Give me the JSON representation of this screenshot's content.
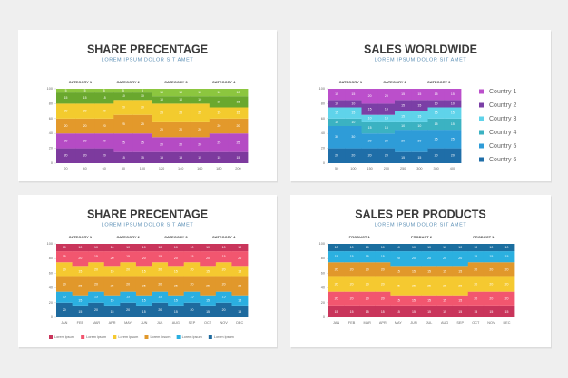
{
  "chart_data": [
    {
      "type": "area",
      "title": "SHARE PRECENTAGE",
      "subtitle": "LOREM IPSUM DOLOR SIT AMET",
      "group_labels": [
        "CATEGORY 1",
        "CATEGORY 2",
        "CATEGORY 3",
        "CATEGORY 4"
      ],
      "categories": [
        "20",
        "40",
        "60",
        "80",
        "100",
        "120",
        "140",
        "160",
        "180",
        "200"
      ],
      "ylim": [
        0,
        100
      ],
      "yticks": [
        0,
        20,
        40,
        60,
        80,
        100
      ],
      "series": [
        {
          "color": "#8cc63f",
          "values": [
            5,
            5,
            5,
            5,
            5,
            10,
            10,
            10,
            10,
            10
          ]
        },
        {
          "color": "#6aa82e",
          "values": [
            15,
            15,
            15,
            10,
            10,
            10,
            10,
            10,
            15,
            15
          ]
        },
        {
          "color": "#f3cb2e",
          "values": [
            20,
            20,
            20,
            20,
            20,
            25,
            25,
            25,
            15,
            15
          ]
        },
        {
          "color": "#e3992b",
          "values": [
            20,
            20,
            20,
            25,
            25,
            20,
            20,
            20,
            20,
            20
          ]
        },
        {
          "color": "#b54bc4",
          "values": [
            20,
            20,
            20,
            25,
            25,
            20,
            20,
            20,
            25,
            25
          ]
        },
        {
          "color": "#7d3a9e",
          "values": [
            20,
            20,
            20,
            15,
            15,
            15,
            15,
            15,
            15,
            15
          ]
        }
      ]
    },
    {
      "type": "area",
      "title": "SALES WORLDWIDE",
      "subtitle": "LOREM IPSUM DOLOR SIT AMET",
      "group_labels": [
        "CATEGORY 1",
        "CATEGORY 2",
        "CATEGORY 3"
      ],
      "categories": [
        "50",
        "100",
        "150",
        "200",
        "250",
        "300",
        "350",
        "400"
      ],
      "ylim": [
        0,
        100
      ],
      "yticks": [
        0,
        20,
        40,
        60,
        80,
        100
      ],
      "legend": "right",
      "series": [
        {
          "name": "Country 1",
          "color": "#bb4fcb",
          "values": [
            15,
            15,
            20,
            20,
            15,
            15,
            15,
            15
          ]
        },
        {
          "name": "Country 2",
          "color": "#7b3fa6",
          "values": [
            10,
            10,
            15,
            15,
            15,
            15,
            10,
            10
          ]
        },
        {
          "name": "Country 3",
          "color": "#5fd3ea",
          "values": [
            15,
            15,
            10,
            10,
            15,
            15,
            15,
            15
          ]
        },
        {
          "name": "Country 4",
          "color": "#3bb2c2",
          "values": [
            10,
            10,
            15,
            15,
            10,
            10,
            15,
            15
          ]
        },
        {
          "name": "Country 5",
          "color": "#2e9cd8",
          "values": [
            30,
            30,
            20,
            20,
            30,
            30,
            25,
            25
          ]
        },
        {
          "name": "Country 6",
          "color": "#1f6ea8",
          "values": [
            20,
            20,
            20,
            20,
            15,
            15,
            20,
            20
          ]
        }
      ]
    },
    {
      "type": "area",
      "title": "SHARE PRECENTAGE",
      "subtitle": "LOREM IPSUM DOLOR SIT AMET",
      "group_labels": [
        "CATEGORY 1",
        "CATEGORY 2",
        "CATEGORY 3",
        "CATEGORY 4"
      ],
      "categories": [
        "JAN",
        "FEB",
        "MAR",
        "APR",
        "MAY",
        "JUN",
        "JUL",
        "AUG",
        "SEP",
        "OCT",
        "NOV",
        "DEC"
      ],
      "ylim": [
        0,
        100
      ],
      "yticks": [
        0,
        20,
        40,
        60,
        80,
        100
      ],
      "legend": "bottom",
      "series": [
        {
          "name": "Lorem ipsum",
          "color": "#c9355b",
          "values": [
            10,
            10,
            10,
            10,
            10,
            10,
            10,
            10,
            10,
            10,
            10,
            10
          ]
        },
        {
          "name": "Lorem ipsum",
          "color": "#f2566f",
          "values": [
            15,
            20,
            15,
            20,
            15,
            20,
            15,
            20,
            15,
            20,
            15,
            20
          ]
        },
        {
          "name": "Lorem ipsum",
          "color": "#f5c930",
          "values": [
            20,
            15,
            20,
            15,
            20,
            15,
            20,
            15,
            20,
            15,
            20,
            15
          ]
        },
        {
          "name": "Lorem ipsum",
          "color": "#e1982b",
          "values": [
            20,
            25,
            20,
            25,
            20,
            25,
            20,
            25,
            20,
            25,
            20,
            25
          ]
        },
        {
          "name": "Lorem ipsum",
          "color": "#2bafe0",
          "values": [
            15,
            15,
            15,
            15,
            15,
            15,
            15,
            15,
            15,
            15,
            15,
            15
          ]
        },
        {
          "name": "Lorem ipsum",
          "color": "#1e6a9e",
          "values": [
            20,
            15,
            20,
            15,
            20,
            15,
            20,
            15,
            20,
            15,
            20,
            15
          ]
        }
      ]
    },
    {
      "type": "area",
      "title": "SALES PER PRODUCTS",
      "subtitle": "LOREM IPSUM DOLOR SIT AMET",
      "group_labels": [
        "PRODUCT 1",
        "PRODUCT 2",
        "PRODUCT 1"
      ],
      "categories": [
        "JAN",
        "FEB",
        "MAR",
        "APR",
        "MAY",
        "JUN",
        "JUL",
        "AUG",
        "SEP",
        "OCT",
        "NOV",
        "DEC"
      ],
      "ylim": [
        0,
        100
      ],
      "yticks": [
        0,
        20,
        40,
        60,
        80,
        100
      ],
      "series": [
        {
          "color": "#1b6e9f",
          "values": [
            10,
            10,
            10,
            10,
            10,
            10,
            10,
            10,
            10,
            10,
            10,
            10
          ]
        },
        {
          "color": "#2bb0e0",
          "values": [
            15,
            15,
            15,
            15,
            20,
            20,
            20,
            20,
            20,
            15,
            15,
            15
          ]
        },
        {
          "color": "#e1982b",
          "values": [
            20,
            20,
            20,
            20,
            15,
            15,
            15,
            15,
            15,
            20,
            20,
            20
          ]
        },
        {
          "color": "#f5c930",
          "values": [
            20,
            20,
            20,
            20,
            25,
            25,
            25,
            25,
            25,
            20,
            20,
            20
          ]
        },
        {
          "color": "#f2566f",
          "values": [
            20,
            20,
            20,
            20,
            15,
            15,
            15,
            15,
            15,
            20,
            20,
            20
          ]
        },
        {
          "color": "#c9355b",
          "values": [
            15,
            15,
            15,
            15,
            15,
            15,
            15,
            15,
            15,
            15,
            15,
            15
          ]
        }
      ]
    }
  ]
}
